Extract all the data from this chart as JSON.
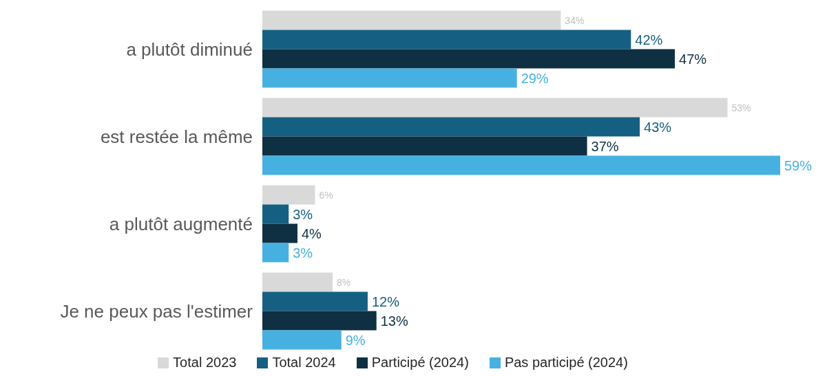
{
  "chart_data": {
    "type": "bar",
    "orientation": "horizontal",
    "categories": [
      "a plutôt diminué",
      "est restée la même",
      "a plutôt augmenté",
      "Je ne peux pas l'estimer"
    ],
    "series": [
      {
        "name": "Total 2023",
        "color": "#d9d9d9",
        "values": [
          34,
          53,
          6,
          8
        ],
        "value_labels": [
          "34%",
          "53%",
          "6%",
          "8%"
        ]
      },
      {
        "name": "Total 2024",
        "color": "#156082",
        "values": [
          42,
          43,
          3,
          12
        ],
        "value_labels": [
          "42%",
          "43%",
          "3%",
          "12%"
        ]
      },
      {
        "name": "Participé (2024)",
        "color": "#0e3042",
        "values": [
          47,
          37,
          4,
          13
        ],
        "value_labels": [
          "47%",
          "37%",
          "4%",
          "13%"
        ]
      },
      {
        "name": "Pas participé (2024)",
        "color": "#46b1e1",
        "values": [
          29,
          59,
          3,
          9
        ],
        "value_labels": [
          "29%",
          "59%",
          "3%",
          "9%"
        ]
      }
    ],
    "legend": "bottom",
    "grid": false
  }
}
